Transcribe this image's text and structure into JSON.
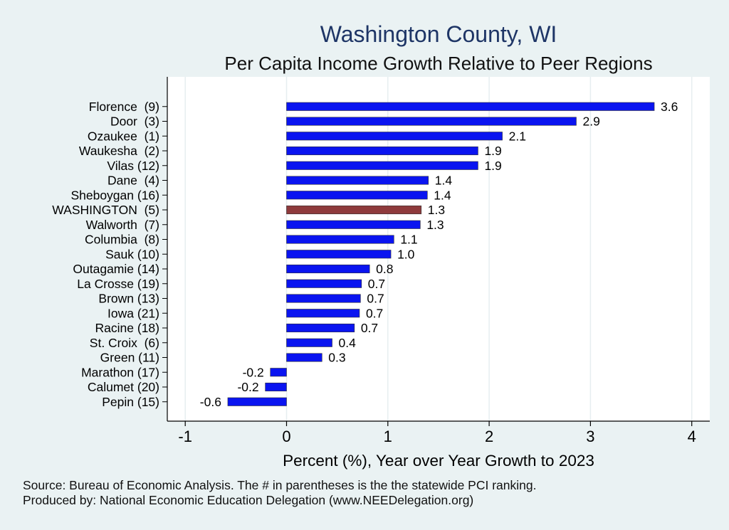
{
  "chart_data": {
    "type": "bar",
    "orientation": "horizontal",
    "title": "Washington County, WI",
    "subtitle": "Per Capita Income Growth Relative to Peer Regions",
    "xlabel": "Percent (%), Year over Year Growth to 2023",
    "ylabel": "",
    "xlim": [
      -1.15,
      4.2
    ],
    "xticks": [
      -1,
      0,
      1,
      2,
      3,
      4
    ],
    "grid": "vertical",
    "categories": [
      "Florence  (9)",
      "Door  (3)",
      "Ozaukee  (1)",
      "Waukesha  (2)",
      "Vilas (12)",
      "Dane  (4)",
      "Sheboygan (16)",
      "WASHINGTON  (5)",
      "Walworth  (7)",
      "Columbia  (8)",
      "Sauk (10)",
      "Outagamie (14)",
      "La Crosse (19)",
      "Brown (13)",
      "Iowa (21)",
      "Racine (18)",
      "St. Croix  (6)",
      "Green (11)",
      "Marathon (17)",
      "Calumet (20)",
      "Pepin (15)"
    ],
    "values": [
      3.63,
      2.86,
      2.13,
      1.89,
      1.89,
      1.4,
      1.39,
      1.33,
      1.32,
      1.06,
      1.03,
      0.82,
      0.74,
      0.73,
      0.72,
      0.67,
      0.45,
      0.35,
      -0.16,
      -0.21,
      -0.58
    ],
    "data_labels": [
      "3.6",
      "2.9",
      "2.1",
      "1.9",
      "1.9",
      "1.4",
      "1.4",
      "1.3",
      "1.3",
      "1.1",
      "1.0",
      "0.8",
      "0.7",
      "0.7",
      "0.7",
      "0.7",
      "0.4",
      "0.3",
      "-0.2",
      "-0.2",
      "-0.6"
    ],
    "highlight_index": 7,
    "colors": {
      "bar": "#0a14f0",
      "highlight": "#8e3a3c",
      "background": "#eaf2f3",
      "plot": "#ffffff",
      "grid": "#e6eef0"
    }
  },
  "footer": {
    "line1": "Source: Bureau of Economic Analysis. The # in parentheses is the the statewide PCI ranking.",
    "line2": "Produced by: National Economic Education Delegation (www.NEEDelegation.org)"
  }
}
